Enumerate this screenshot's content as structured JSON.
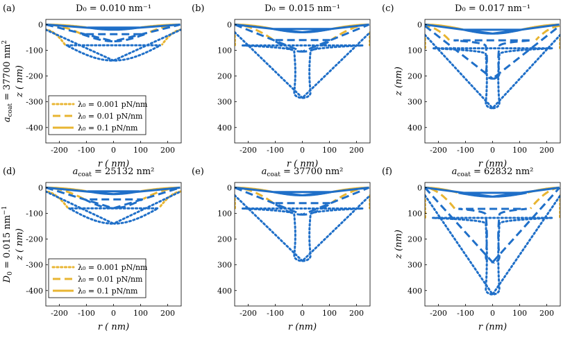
{
  "figure": {
    "row_labels": [
      {
        "main": "a",
        "sub": "coat",
        "rest": " = 37700 nm",
        "sup": "2"
      },
      {
        "main": "D",
        "sub": "0",
        "rest": " = 0.015 nm",
        "sup": "−1"
      }
    ]
  },
  "colors": {
    "blue": "#1f6fc8",
    "gold": "#e8b532"
  },
  "legend": [
    {
      "label": "λ₀ = 0.001 pN/nm",
      "style": "dotted"
    },
    {
      "label": "λ₀ = 0.01 pN/nm",
      "style": "dashed"
    },
    {
      "label": "λ₀ = 0.1 pN/nm",
      "style": "solid"
    }
  ],
  "chart_data": [
    {
      "type": "line",
      "panel": "(a)",
      "title": "D₀ = 0.010 nm⁻¹",
      "xlabel": "r ( nm)",
      "ylabel": "z ( nm)",
      "xlim": [
        -250,
        250
      ],
      "ylim": [
        -460,
        20
      ],
      "xticks": [
        -200,
        -100,
        0,
        100,
        200
      ],
      "yticks": [
        0,
        -100,
        -200,
        -300,
        -400
      ],
      "ytick_labels": [
        "0",
        "-100",
        "-200",
        "-300",
        "-400"
      ],
      "legend": true,
      "series": [
        {
          "name": "λ₀ = 0.001 pN/nm",
          "style": "dotted",
          "outer": [
            -250,
            -20
          ],
          "deep": {
            "depth": -140,
            "neck": 40,
            "core_r": 10,
            "reach": 180
          }
        },
        {
          "name": "λ₀ = 0.01 pN/nm",
          "style": "dashed",
          "outer": [
            -250,
            0
          ],
          "deep": {
            "depth": -65,
            "neck": 40,
            "core_r": 20,
            "reach": 120
          }
        },
        {
          "name": "λ₀ = 0.1 pN/nm",
          "style": "solid",
          "outer": [
            -250,
            0
          ],
          "deep": {
            "depth": -20,
            "neck": 40,
            "core_r": 20,
            "reach": 100
          }
        }
      ]
    },
    {
      "type": "line",
      "panel": "(b)",
      "title": "D₀ = 0.015 nm⁻¹",
      "xlabel": "r ( nm)",
      "ylabel": "",
      "xlim": [
        -250,
        250
      ],
      "ylim": [
        -460,
        20
      ],
      "xticks": [
        -200,
        -100,
        0,
        100,
        200
      ],
      "yticks": [
        0,
        -100,
        -200,
        -300,
        -400
      ],
      "ytick_labels": [
        "0",
        "100",
        "200",
        "300",
        "400"
      ],
      "legend": false,
      "series": [
        {
          "name": "λ₀ = 0.001 pN/nm",
          "style": "dotted",
          "outer": [
            -250,
            -30
          ],
          "deep": {
            "depth": -285,
            "neck": 30,
            "core_r": 20,
            "reach": 250
          }
        },
        {
          "name": "λ₀ = 0.01 pN/nm",
          "style": "dashed",
          "outer": [
            -250,
            0
          ],
          "deep": {
            "depth": -105,
            "neck": 30,
            "core_r": 20,
            "reach": 110
          }
        },
        {
          "name": "λ₀ = 0.1 pN/nm",
          "style": "solid",
          "outer": [
            -250,
            0
          ],
          "deep": {
            "depth": -30,
            "neck": 40,
            "core_r": 20,
            "reach": 110
          }
        }
      ]
    },
    {
      "type": "line",
      "panel": "(c)",
      "title": "D₀ = 0.017 nm⁻¹",
      "xlabel": "r (nm)",
      "ylabel": "z (nm)",
      "xlim": [
        -250,
        250
      ],
      "ylim": [
        -460,
        20
      ],
      "xticks": [
        -200,
        -100,
        0,
        100,
        200
      ],
      "yticks": [
        0,
        -100,
        -200,
        -300,
        -400
      ],
      "ytick_labels": [
        "0",
        "100",
        "200",
        "300",
        "400"
      ],
      "legend": false,
      "series": [
        {
          "name": "λ₀ = 0.001 pN/nm",
          "style": "dotted",
          "outer": [
            -250,
            -40
          ],
          "deep": {
            "depth": -325,
            "neck": 25,
            "core_r": 20,
            "reach": 250
          }
        },
        {
          "name": "λ₀ = 0.01 pN/nm",
          "style": "dashed",
          "outer": [
            -250,
            -5
          ],
          "deep": {
            "depth": -210,
            "neck": 25,
            "core_r": 20,
            "reach": 160
          }
        },
        {
          "name": "λ₀ = 0.1 pN/nm",
          "style": "solid",
          "outer": [
            -250,
            0
          ],
          "deep": {
            "depth": -35,
            "neck": 40,
            "core_r": 20,
            "reach": 110
          }
        }
      ]
    },
    {
      "type": "line",
      "panel": "(d)",
      "title": "a_coat = 25132 nm²",
      "xlabel": "r ( nm)",
      "ylabel": "z ( nm)",
      "xlim": [
        -250,
        250
      ],
      "ylim": [
        -460,
        20
      ],
      "xticks": [
        -200,
        -100,
        0,
        100,
        200
      ],
      "yticks": [
        0,
        -100,
        -200,
        -300,
        -400
      ],
      "ytick_labels": [
        "0",
        "-100",
        "-200",
        "-300",
        "-400"
      ],
      "legend": true,
      "series": [
        {
          "name": "λ₀ = 0.001 pN/nm",
          "style": "dotted",
          "outer": [
            -250,
            -15
          ],
          "deep": {
            "depth": -140,
            "neck": 40,
            "core_r": 10,
            "reach": 170
          }
        },
        {
          "name": "λ₀ = 0.01 pN/nm",
          "style": "dashed",
          "outer": [
            -250,
            0
          ],
          "deep": {
            "depth": -80,
            "neck": 30,
            "core_r": 20,
            "reach": 110
          }
        },
        {
          "name": "λ₀ = 0.1 pN/nm",
          "style": "solid",
          "outer": [
            -250,
            0
          ],
          "deep": {
            "depth": -25,
            "neck": 40,
            "core_r": 20,
            "reach": 100
          }
        }
      ]
    },
    {
      "type": "line",
      "panel": "(e)",
      "title": "a_coat = 37700 nm²",
      "xlabel": "r (nm)",
      "ylabel": "",
      "xlim": [
        -250,
        250
      ],
      "ylim": [
        -460,
        20
      ],
      "xticks": [
        -200,
        -100,
        0,
        100,
        200
      ],
      "yticks": [
        0,
        -100,
        -200,
        -300,
        -400
      ],
      "ytick_labels": [
        "0",
        "100",
        "200",
        "300",
        "400"
      ],
      "legend": false,
      "series": [
        {
          "name": "λ₀ = 0.001 pN/nm",
          "style": "dotted",
          "outer": [
            -250,
            -30
          ],
          "deep": {
            "depth": -285,
            "neck": 30,
            "core_r": 20,
            "reach": 250
          }
        },
        {
          "name": "λ₀ = 0.01 pN/nm",
          "style": "dashed",
          "outer": [
            -250,
            0
          ],
          "deep": {
            "depth": -105,
            "neck": 30,
            "core_r": 20,
            "reach": 110
          }
        },
        {
          "name": "λ₀ = 0.1 pN/nm",
          "style": "solid",
          "outer": [
            -250,
            0
          ],
          "deep": {
            "depth": -30,
            "neck": 40,
            "core_r": 20,
            "reach": 110
          }
        }
      ]
    },
    {
      "type": "line",
      "panel": "(f)",
      "title": "a_coat = 62832 nm²",
      "xlabel": "r (nm)",
      "ylabel": "z (nm)",
      "xlim": [
        -250,
        250
      ],
      "ylim": [
        -460,
        20
      ],
      "xticks": [
        -200,
        -100,
        0,
        100,
        200
      ],
      "yticks": [
        0,
        -100,
        -200,
        -300,
        -400
      ],
      "ytick_labels": [
        "0",
        "100",
        "200",
        "300",
        "400"
      ],
      "legend": false,
      "series": [
        {
          "name": "λ₀ = 0.001 pN/nm",
          "style": "dotted",
          "outer": [
            -250,
            -30
          ],
          "deep": {
            "depth": -415,
            "neck": 25,
            "core_r": 20,
            "reach": 250
          }
        },
        {
          "name": "λ₀ = 0.01 pN/nm",
          "style": "dashed",
          "outer": [
            -250,
            0
          ],
          "deep": {
            "depth": -290,
            "neck": 25,
            "core_r": 20,
            "reach": 140
          }
        },
        {
          "name": "λ₀ = 0.1 pN/nm",
          "style": "solid",
          "outer": [
            -250,
            0
          ],
          "deep": {
            "depth": -35,
            "neck": 40,
            "core_r": 20,
            "reach": 130
          }
        }
      ]
    }
  ]
}
